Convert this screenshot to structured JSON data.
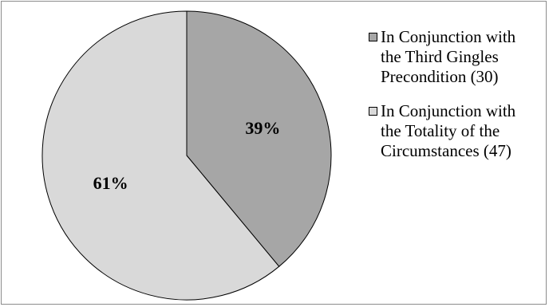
{
  "chart_data": {
    "type": "pie",
    "title": "",
    "series": [
      {
        "name": "",
        "values": [
          30,
          47
        ]
      }
    ],
    "categories": [
      "In Conjunction with the Third Gingles Precondition (30)",
      "In Conjunction with the Totality of the Circumstances (47)"
    ],
    "slices": [
      {
        "label": "In Conjunction with the Third Gingles Precondition (30)",
        "value": 30,
        "percent_label": "39%",
        "color": "#a6a6a6"
      },
      {
        "label": "In Conjunction with the Totality of the Circumstances (47)",
        "value": 47,
        "percent_label": "61%",
        "color": "#d9d9d9"
      }
    ],
    "legend_position": "right",
    "start_angle_deg": 0,
    "direction": "clockwise"
  }
}
